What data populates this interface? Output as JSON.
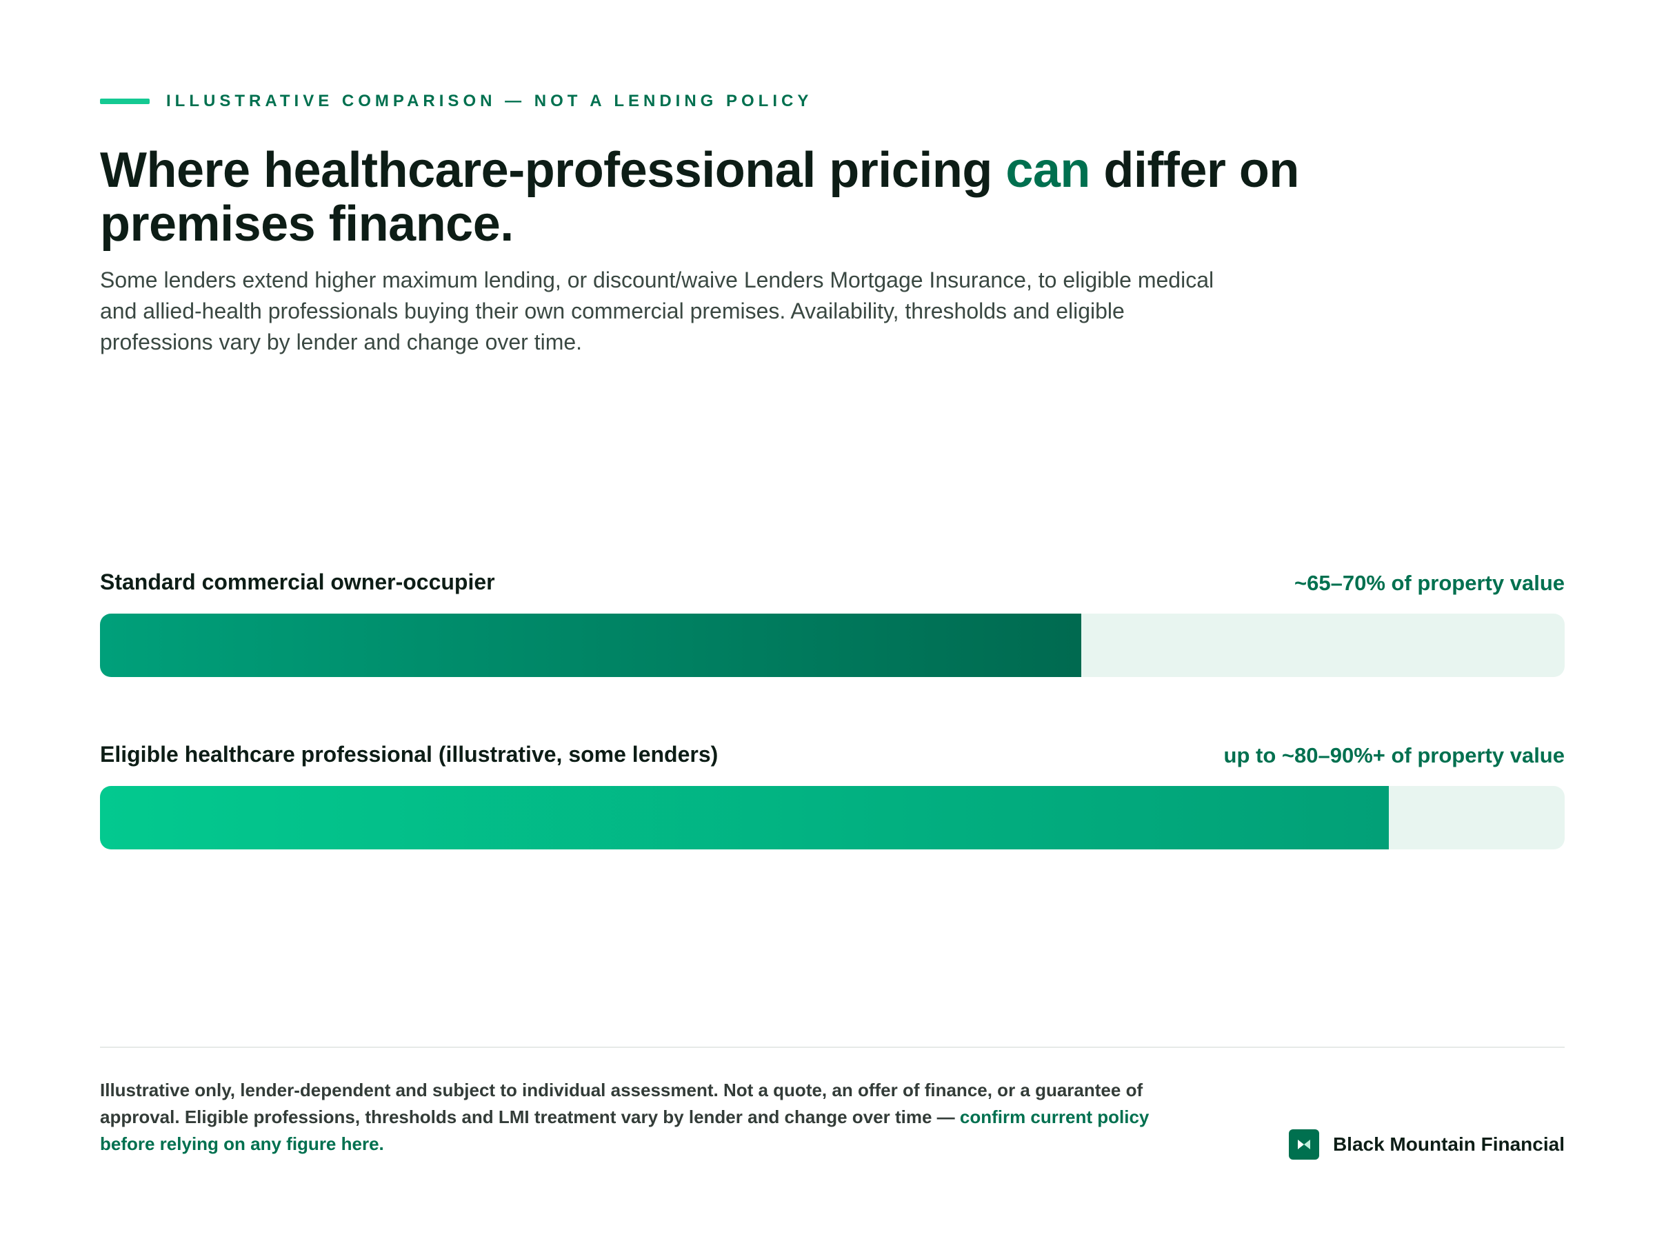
{
  "colors": {
    "accent": "#00704f",
    "accent_bright": "#14c992",
    "track": "#e8f5f0",
    "bar1_start": "#00a07a",
    "bar1_end": "#006a50",
    "bar2_start": "#03c98f",
    "bar2_end": "#02a077",
    "brand_mark": "#00704f"
  },
  "eyebrow": {
    "text": "ILLUSTRATIVE COMPARISON — NOT A LENDING POLICY"
  },
  "headline": {
    "before": "Where healthcare-professional pricing ",
    "accent": "can",
    "after": " differ on premises finance."
  },
  "lede": "Some lenders extend higher maximum lending, or discount/waive Lenders Mortgage Insurance, to eligible medical and allied-health professionals buying their own commercial premises. Availability, thresholds and eligible professions vary by lender and change over time.",
  "chart_data": {
    "type": "bar",
    "orientation": "horizontal",
    "title": "",
    "xlabel": "",
    "ylabel": "",
    "xlim": [
      0,
      100
    ],
    "grid": false,
    "categories": [
      "Standard commercial owner-occupier",
      "Eligible healthcare professional (illustrative, some lenders)"
    ],
    "values": [
      67,
      88
    ],
    "data_labels": [
      "~65–70% of property value",
      "up to ~80–90%+ of property value"
    ]
  },
  "footer": {
    "disclaimer": "Illustrative only, lender-dependent and subject to individual assessment. Not a quote, an offer of finance, or a guarantee of approval. Eligible professions, thresholds and LMI treatment vary by lender and change over time — ",
    "cta": "confirm current policy before relying on any figure here.",
    "brand_name": "Black Mountain Financial",
    "brand_icon": "bowtie-logo-icon"
  }
}
